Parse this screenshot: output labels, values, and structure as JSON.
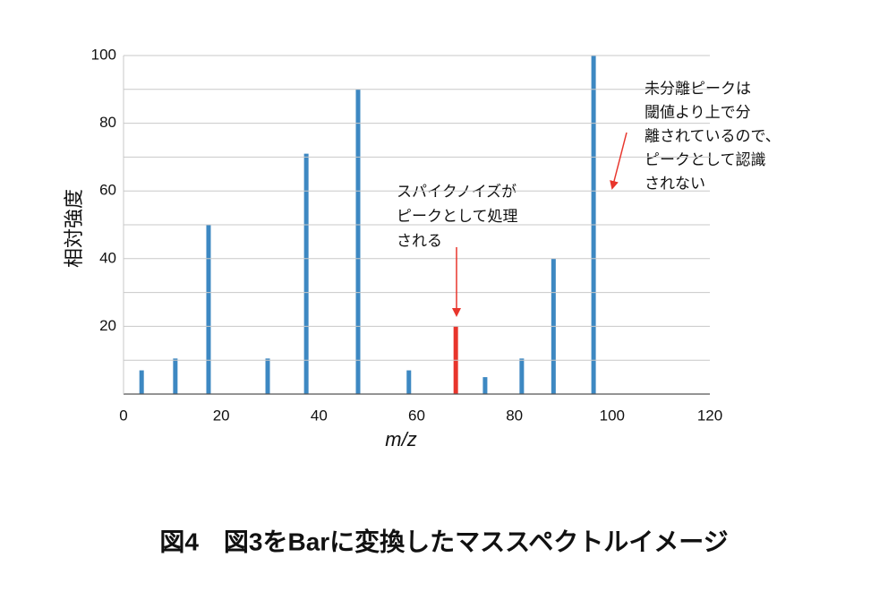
{
  "chart_data": {
    "type": "bar",
    "y_label": "相対強度",
    "x_label": "m/z",
    "x": [
      3.7,
      10.6,
      17.4,
      29.5,
      37.4,
      48,
      58.4,
      68,
      74,
      81.5,
      88,
      96.2
    ],
    "values": [
      7,
      10.5,
      50,
      10.5,
      71,
      90,
      7,
      20,
      5,
      10.5,
      40,
      100
    ],
    "colors": [
      "#3d88c2",
      "#3d88c2",
      "#3d88c2",
      "#3d88c2",
      "#3d88c2",
      "#3d88c2",
      "#3d88c2",
      "#e8352c",
      "#3d88c2",
      "#3d88c2",
      "#3d88c2",
      "#3d88c2"
    ],
    "xlim": [
      0,
      120
    ],
    "xticks": [
      0,
      20,
      40,
      60,
      80,
      100,
      120
    ],
    "ylim": [
      0,
      100
    ],
    "yticks": [
      20,
      40,
      60,
      80,
      100
    ],
    "ygrid": [
      10,
      20,
      30,
      40,
      50,
      60,
      70,
      80,
      90,
      100
    ],
    "annotations": [
      {
        "lines": [
          "スパイクノイズが",
          "ピークとして処理",
          "される"
        ]
      },
      {
        "lines": [
          "未分離ピークは",
          "閾値より上で分",
          "離されているので、",
          "ピークとして認識",
          "されない"
        ]
      }
    ],
    "caption": "図4　図3をBarに変換したマススペクトルイメージ"
  }
}
